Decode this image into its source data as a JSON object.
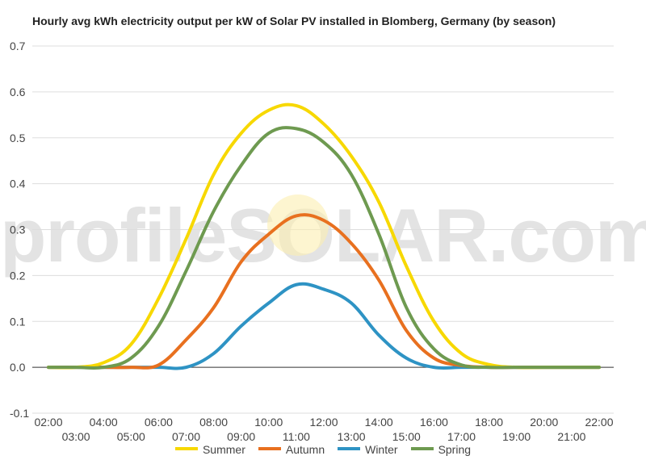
{
  "watermark": "profileSOLAR.com",
  "chart_data": {
    "type": "line",
    "title": "Hourly avg kWh electricity output per kW of Solar PV installed in Blomberg, Germany (by season)",
    "xlabel": "",
    "ylabel": "",
    "x": [
      2,
      3,
      4,
      5,
      6,
      7,
      8,
      9,
      10,
      11,
      12,
      13,
      14,
      15,
      16,
      17,
      18,
      19,
      20,
      21,
      22
    ],
    "x_tick_labels_top": [
      "02:00",
      "04:00",
      "06:00",
      "08:00",
      "10:00",
      "12:00",
      "14:00",
      "16:00",
      "18:00",
      "20:00",
      "22:00"
    ],
    "x_tick_labels_bottom": [
      "03:00",
      "05:00",
      "07:00",
      "09:00",
      "11:00",
      "13:00",
      "15:00",
      "17:00",
      "19:00",
      "21:00"
    ],
    "ylim": [
      -0.1,
      0.7
    ],
    "y_ticks": [
      "-0.1",
      "0.0",
      "0.1",
      "0.2",
      "0.3",
      "0.4",
      "0.5",
      "0.6",
      "0.7"
    ],
    "grid": true,
    "legend_position": "bottom",
    "series": [
      {
        "name": "Summer",
        "color": "#f7d800",
        "values": [
          0,
          0,
          0.01,
          0.05,
          0.15,
          0.28,
          0.42,
          0.51,
          0.56,
          0.57,
          0.53,
          0.46,
          0.36,
          0.22,
          0.1,
          0.03,
          0.006,
          0,
          0,
          0,
          0
        ]
      },
      {
        "name": "Autumn",
        "color": "#e8701f",
        "values": [
          0,
          0,
          0,
          0,
          0.005,
          0.06,
          0.13,
          0.23,
          0.29,
          0.33,
          0.32,
          0.27,
          0.19,
          0.08,
          0.02,
          0.004,
          0,
          0,
          0,
          0,
          0
        ]
      },
      {
        "name": "Winter",
        "color": "#2e93c4",
        "values": [
          0,
          0,
          0,
          0,
          0,
          0,
          0.03,
          0.09,
          0.14,
          0.18,
          0.17,
          0.14,
          0.07,
          0.02,
          0,
          0,
          0,
          0,
          0,
          0,
          0
        ]
      },
      {
        "name": "Spring",
        "color": "#6e9a50",
        "values": [
          0,
          0,
          0,
          0.02,
          0.09,
          0.21,
          0.34,
          0.44,
          0.51,
          0.52,
          0.49,
          0.42,
          0.29,
          0.13,
          0.04,
          0.005,
          0,
          0,
          0,
          0,
          0
        ]
      }
    ]
  }
}
